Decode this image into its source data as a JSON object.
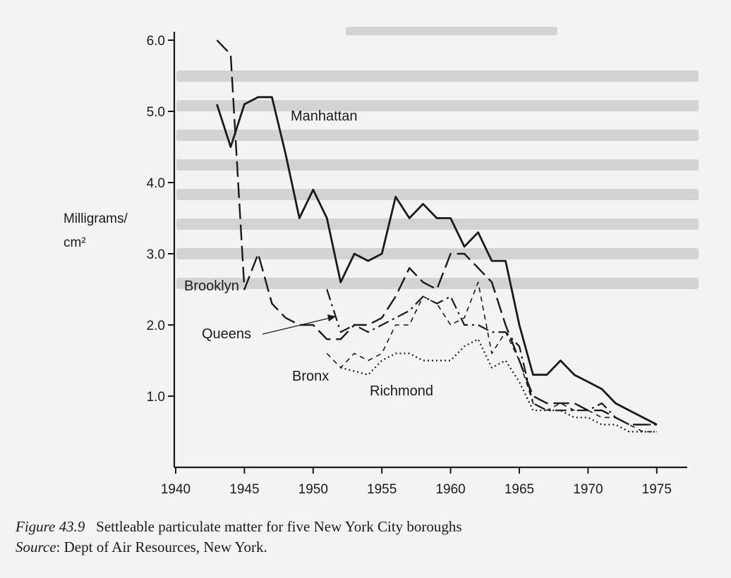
{
  "figure": {
    "number": "Figure 43.9",
    "caption": "Settleable particulate matter for five New York City boroughs",
    "source_label": "Source",
    "source_text": ": Dept of Air Resources, New York."
  },
  "colors": {
    "ink": "#1a1a1a",
    "paper": "#f3f3f1",
    "ghost": "#c9c9c7"
  },
  "chart_data": {
    "type": "line",
    "title": "",
    "xlabel": "",
    "ylabel": "Milligrams/ cm²",
    "ylabel_lines": [
      "Milligrams/",
      "cm²"
    ],
    "xlim": [
      1940,
      1977
    ],
    "ylim": [
      0,
      6.0
    ],
    "x_ticks": [
      1940,
      1945,
      1950,
      1955,
      1960,
      1965,
      1970,
      1975
    ],
    "x_tick_labels": [
      "1940",
      "1945",
      "1950",
      "1955",
      "1960",
      "1965",
      "1970",
      "1975"
    ],
    "y_ticks": [
      1.0,
      2.0,
      3.0,
      4.0,
      5.0,
      6.0
    ],
    "y_tick_labels": [
      "1.0",
      "2.0",
      "3.0",
      "4.0",
      "5.0",
      "6.0"
    ],
    "grid": false,
    "legend": "inline labels",
    "series": [
      {
        "name": "Manhattan",
        "style": "solid",
        "x": [
          1943,
          1944,
          1945,
          1946,
          1947,
          1948,
          1949,
          1950,
          1951,
          1952,
          1953,
          1954,
          1955,
          1956,
          1957,
          1958,
          1959,
          1960,
          1961,
          1962,
          1963,
          1964,
          1965,
          1966,
          1967,
          1968,
          1969,
          1970,
          1971,
          1972,
          1973,
          1974,
          1975
        ],
        "values": [
          5.1,
          4.5,
          5.1,
          5.2,
          5.2,
          4.4,
          3.5,
          3.9,
          3.5,
          2.6,
          3.0,
          2.9,
          3.0,
          3.8,
          3.5,
          3.7,
          3.5,
          3.5,
          3.1,
          3.3,
          2.9,
          2.9,
          2.0,
          1.3,
          1.3,
          1.5,
          1.3,
          1.2,
          1.1,
          0.9,
          0.8,
          0.7,
          0.6
        ]
      },
      {
        "name": "Brooklyn",
        "style": "long-dash",
        "x": [
          1943,
          1944,
          1945,
          1946,
          1947,
          1948,
          1949,
          1950,
          1951,
          1952,
          1953,
          1954,
          1955,
          1956,
          1957,
          1958,
          1959,
          1960,
          1961,
          1962,
          1963,
          1964,
          1965,
          1966,
          1967,
          1968,
          1969,
          1970,
          1971,
          1972,
          1973,
          1974,
          1975
        ],
        "values": [
          6.0,
          5.8,
          2.5,
          3.0,
          2.3,
          2.1,
          2.0,
          2.0,
          1.8,
          1.8,
          2.0,
          2.0,
          2.1,
          2.4,
          2.8,
          2.6,
          2.5,
          3.0,
          3.0,
          2.8,
          2.6,
          2.0,
          1.5,
          1.0,
          0.9,
          0.9,
          0.9,
          0.8,
          0.8,
          0.7,
          0.6,
          0.6,
          0.6
        ]
      },
      {
        "name": "Queens",
        "style": "dash-dot",
        "x": [
          1951,
          1952,
          1953,
          1954,
          1955,
          1956,
          1957,
          1958,
          1959,
          1960,
          1961,
          1962,
          1963,
          1964,
          1965,
          1966,
          1967,
          1968,
          1969,
          1970,
          1971,
          1972,
          1973,
          1974,
          1975
        ],
        "values": [
          2.5,
          1.9,
          2.0,
          1.9,
          2.0,
          2.1,
          2.2,
          2.4,
          2.3,
          2.4,
          2.0,
          2.0,
          1.9,
          1.9,
          1.7,
          0.9,
          0.8,
          0.8,
          0.8,
          0.8,
          0.9,
          0.7,
          0.6,
          0.6,
          0.6
        ]
      },
      {
        "name": "Bronx",
        "style": "short-dash",
        "x": [
          1951,
          1952,
          1953,
          1954,
          1955,
          1956,
          1957,
          1958,
          1959,
          1960,
          1961,
          1962,
          1963,
          1964,
          1965,
          1966,
          1967,
          1968,
          1969,
          1970,
          1971,
          1972,
          1973,
          1974,
          1975
        ],
        "values": [
          1.6,
          1.4,
          1.6,
          1.5,
          1.6,
          2.0,
          2.0,
          2.4,
          2.3,
          2.0,
          2.1,
          2.6,
          1.6,
          1.9,
          1.5,
          0.9,
          0.8,
          0.9,
          0.8,
          0.8,
          0.7,
          0.7,
          0.6,
          0.5,
          0.5
        ]
      },
      {
        "name": "Richmond",
        "style": "dotted",
        "x": [
          1952,
          1954,
          1955,
          1956,
          1957,
          1958,
          1959,
          1960,
          1961,
          1962,
          1963,
          1964,
          1965,
          1966,
          1967,
          1968,
          1969,
          1970,
          1971,
          1972,
          1973,
          1974,
          1975
        ],
        "values": [
          1.4,
          1.3,
          1.5,
          1.6,
          1.6,
          1.5,
          1.5,
          1.5,
          1.7,
          1.8,
          1.4,
          1.5,
          1.2,
          0.8,
          0.8,
          0.8,
          0.7,
          0.7,
          0.6,
          0.6,
          0.5,
          0.5,
          0.5
        ]
      }
    ]
  }
}
